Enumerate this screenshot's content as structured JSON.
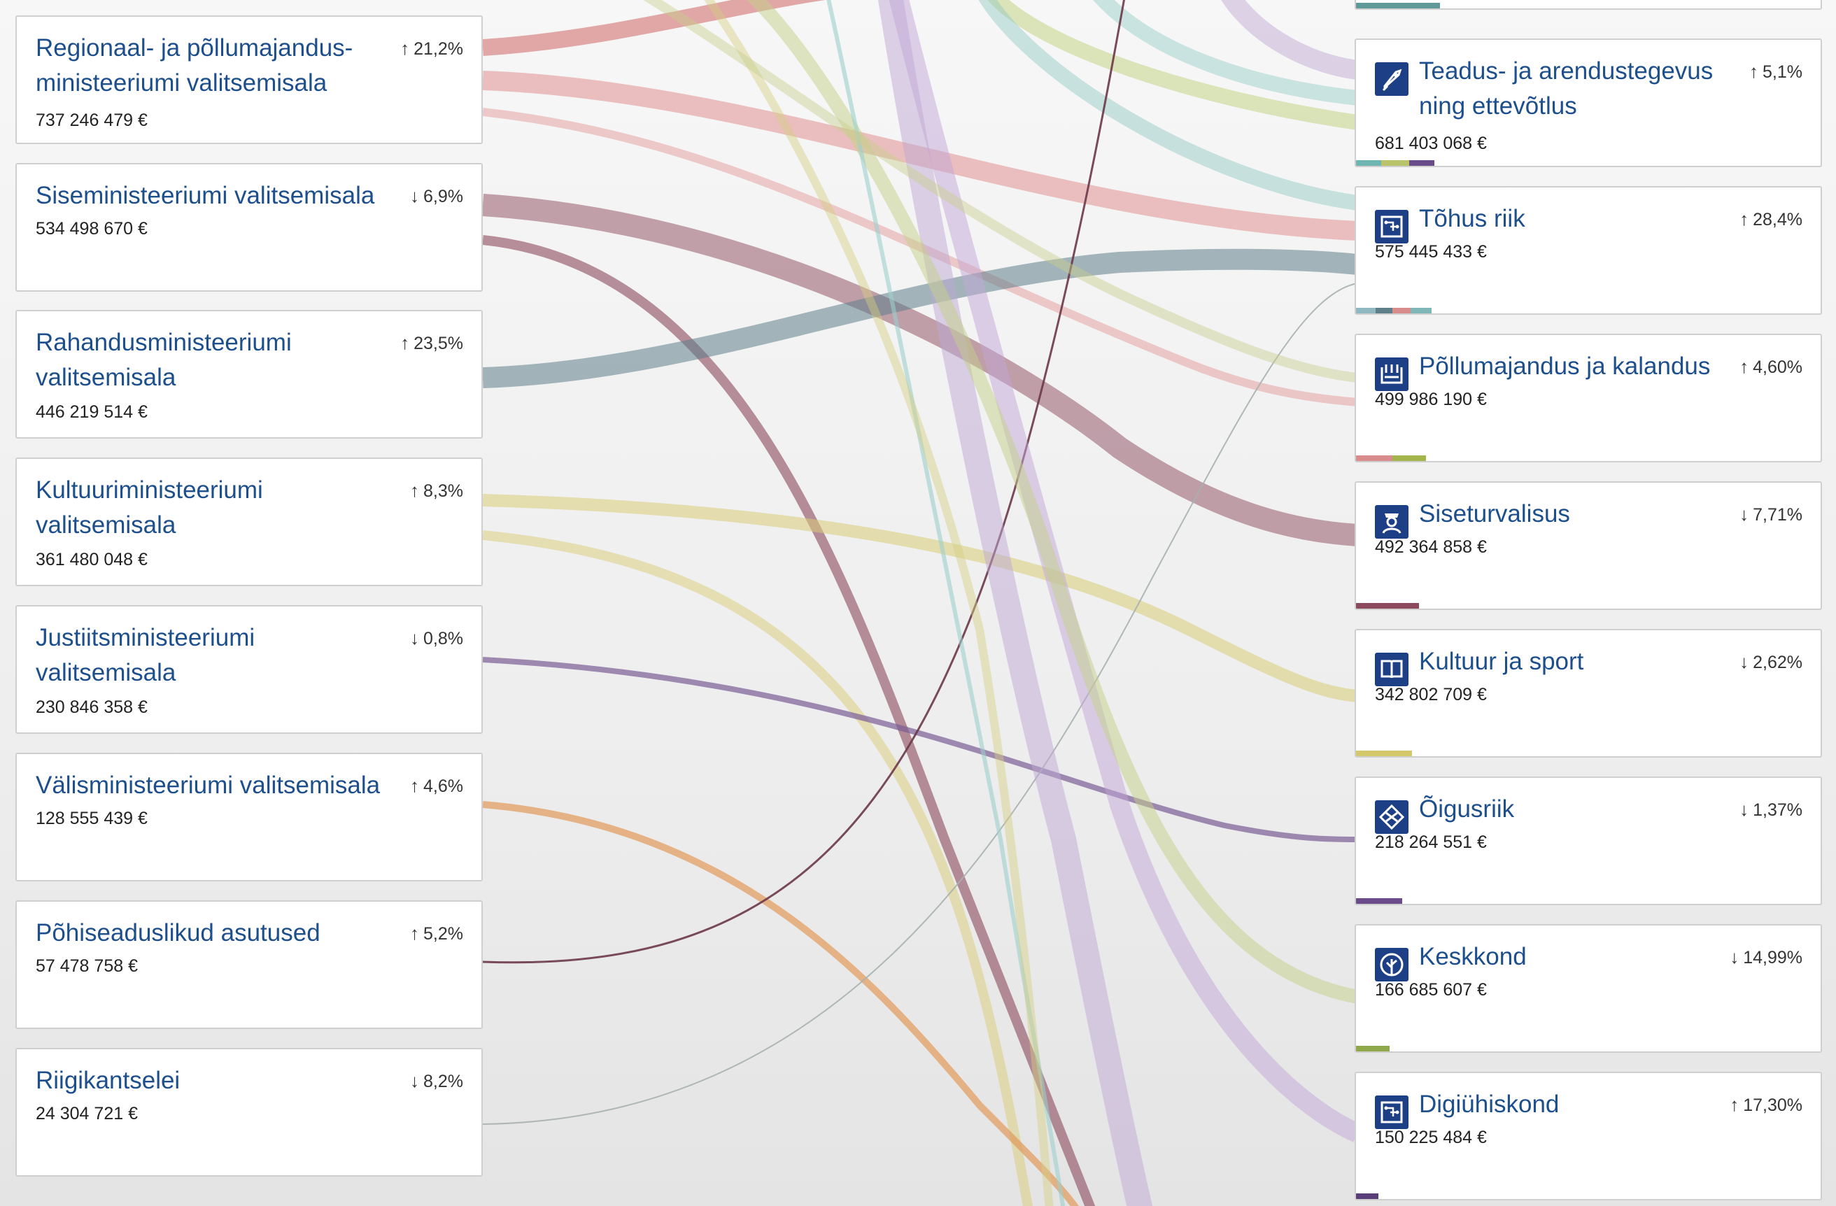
{
  "ministries": [
    {
      "name": "Regionaal- ja põllumajandus-ministeeriumi valitsemisala",
      "amount": "737 246 479 €",
      "change": "21,2%",
      "direction": "up",
      "color": "#d98c8c"
    },
    {
      "name": "Siseministeeriumi valitsemisala",
      "amount": "534 498 670 €",
      "change": "6,9%",
      "direction": "down",
      "color": "#8b4a5e"
    },
    {
      "name": "Rahandusministeeriumi valitsemisala",
      "amount": "446 219 514 €",
      "change": "23,5%",
      "direction": "up",
      "color": "#5f7f8a"
    },
    {
      "name": "Kultuuriministeeriumi valitsemisala",
      "amount": "361 480 048 €",
      "change": "8,3%",
      "direction": "up",
      "color": "#d9cc76"
    },
    {
      "name": "Justiitsministeeriumi valitsemisala",
      "amount": "230 846 358 €",
      "change": "0,8%",
      "direction": "down",
      "color": "#7a5c95"
    },
    {
      "name": "Välisministeeriumi valitsemisala",
      "amount": "128 555 439 €",
      "change": "4,6%",
      "direction": "up",
      "color": "#e19a5a"
    },
    {
      "name": "Põhiseaduslikud asutused",
      "amount": "57 478 758 €",
      "change": "5,2%",
      "direction": "up",
      "color": "#6b3848"
    },
    {
      "name": "Riigikantselei",
      "amount": "24 304 721 €",
      "change": "8,2%",
      "direction": "down",
      "color": "#9aa0a0"
    }
  ],
  "topics": [
    {
      "name": "Teadus- ja arendustegevus ning ettevõtlus",
      "amount": "681 403 068 €",
      "change": "5,1%",
      "direction": "up",
      "icon": "rocket-icon"
    },
    {
      "name": "Tõhus riik",
      "amount": "575 445 433 €",
      "change": "28,4%",
      "direction": "up",
      "icon": "circuit-icon"
    },
    {
      "name": "Põllumajandus ja kalandus",
      "amount": "499 986 190 €",
      "change": "4,60%",
      "direction": "up",
      "icon": "farm-icon"
    },
    {
      "name": "Siseturvalisus",
      "amount": "492 364 858 €",
      "change": "7,71%",
      "direction": "down",
      "icon": "police-icon"
    },
    {
      "name": "Kultuur ja sport",
      "amount": "342 802 709 €",
      "change": "2,62%",
      "direction": "down",
      "icon": "book-icon"
    },
    {
      "name": "Õigusriik",
      "amount": "218 264 551 €",
      "change": "1,37%",
      "direction": "down",
      "icon": "justice-icon"
    },
    {
      "name": "Keskkond",
      "amount": "166 685 607 €",
      "change": "14,99%",
      "direction": "down",
      "icon": "leaf-icon"
    },
    {
      "name": "Digiühiskond",
      "amount": "150 225 484 €",
      "change": "17,30%",
      "direction": "up",
      "icon": "circuit-icon"
    }
  ],
  "arrows": {
    "up": "↑",
    "down": "↓"
  }
}
